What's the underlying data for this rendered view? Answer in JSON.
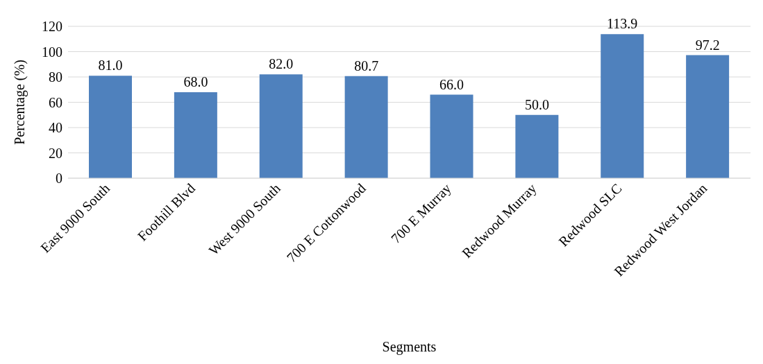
{
  "chart_data": {
    "type": "bar",
    "xlabel": "Segments",
    "ylabel": "Percentage (%)",
    "categories": [
      "East 9000 South",
      "Foothill Blvd",
      "West 9000 South",
      "700 E Cottonwood",
      "700 E Murray",
      "Redwood Murray",
      "Redwood SLC",
      "Redwood West Jordan"
    ],
    "values": [
      81,
      68,
      82,
      80.7,
      66,
      50,
      113.9,
      97.2
    ],
    "value_labels": [
      "81.0",
      "68.0",
      "82.0",
      "80.7",
      "66.0",
      "50.0",
      "113.9",
      "97.2"
    ],
    "color": "#4f81bd",
    "ylim": [
      0,
      120
    ],
    "yticks": [
      0,
      20,
      40,
      60,
      80,
      100,
      120
    ],
    "grid": "y"
  }
}
